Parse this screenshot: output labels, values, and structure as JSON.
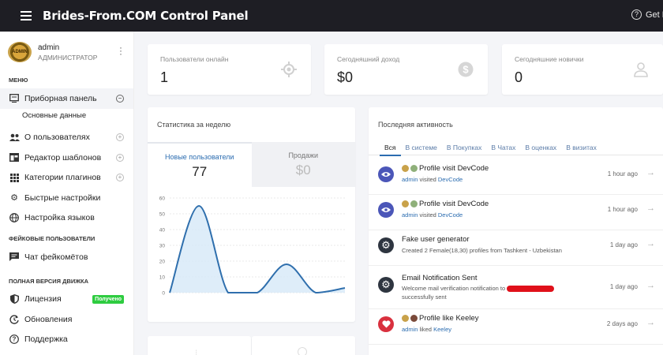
{
  "app": {
    "title": "Brides-From.COM Control Panel",
    "help_label": "Get H"
  },
  "user": {
    "name": "admin",
    "role": "АДМИНИСТРАТОР",
    "avatar_text": "ADMIN"
  },
  "sidebar": {
    "sections": {
      "menu": "МЕНЮ",
      "fake": "ФЕЙКОВЫЕ ПОЛЬЗОВАТЕЛИ",
      "full": "ПОЛНАЯ ВЕРСИЯ ДВИЖКА"
    },
    "items": [
      {
        "label": "Приборная панель",
        "icon": "dashboard-icon"
      },
      {
        "label": "Основные данные"
      },
      {
        "label": "О пользователях",
        "icon": "users-icon"
      },
      {
        "label": "Редактор шаблонов",
        "icon": "template-icon"
      },
      {
        "label": "Категории плагинов",
        "icon": "grid-icon"
      },
      {
        "label": "Быстрые настройки",
        "icon": "gear-icon"
      },
      {
        "label": "Настройка языков",
        "icon": "globe-icon"
      },
      {
        "label": "Чат фейкомётов",
        "icon": "chat-icon"
      },
      {
        "label": "Лицензия",
        "icon": "shield-icon",
        "badge": "Получено"
      },
      {
        "label": "Обновления",
        "icon": "update-icon"
      },
      {
        "label": "Поддержка",
        "icon": "help-icon"
      }
    ]
  },
  "stats": [
    {
      "label": "Пользователи онлайн",
      "value": "1",
      "icon": "target-icon"
    },
    {
      "label": "Сегодняшний доход",
      "value": "$0",
      "icon": "dollar-icon"
    },
    {
      "label": "Сегодняшние новички",
      "value": "0",
      "icon": "user-icon"
    }
  ],
  "weekly": {
    "title": "Статистика за неделю",
    "tabs": [
      {
        "label": "Новые пользователи",
        "value": "77"
      },
      {
        "label": "Продажи",
        "value": "$0"
      }
    ]
  },
  "chart_data": {
    "type": "area",
    "title": "",
    "xlabel": "",
    "ylabel": "",
    "ylim": [
      0,
      60
    ],
    "yticks": [
      0,
      10,
      20,
      30,
      40,
      50,
      60
    ],
    "grid": true,
    "series": [
      {
        "values": [
          0,
          55,
          0,
          0,
          18,
          0,
          3
        ]
      }
    ],
    "colors": {
      "line": "#2f6fad",
      "fill": "#d6e8f8"
    }
  },
  "activity": {
    "title": "Последняя активность",
    "tabs": [
      "Вся",
      "В системе",
      "В Покупках",
      "В Чатах",
      "В оценках",
      "В визитах"
    ],
    "items": [
      {
        "title": "Profile visit DevCode",
        "actor": "admin",
        "verb": "visited",
        "target": "DevCode",
        "time": "1 hour ago",
        "icon": "eye-icon",
        "color": "#4b56b8"
      },
      {
        "title": "Profile visit DevCode",
        "actor": "admin",
        "verb": "visited",
        "target": "DevCode",
        "time": "1 hour ago",
        "icon": "eye-icon",
        "color": "#4b56b8"
      },
      {
        "title": "Fake user generator",
        "desc": "Created 2 Female(18,30) profiles from Tashkent - Uzbekistan",
        "time": "1 day ago",
        "icon": "gear-icon",
        "color": "#2e3540"
      },
      {
        "title": "Email Notification Sent",
        "desc_a": "Welcome mail verification notification to",
        "desc_b": "successfully sent",
        "time": "1 day ago",
        "icon": "gear-icon",
        "color": "#2e3540"
      },
      {
        "title": "Profile like Keeley",
        "actor": "admin",
        "verb": "liked",
        "target": "Keeley",
        "time": "2 days ago",
        "icon": "heart-icon",
        "color": "#d9303e"
      }
    ]
  }
}
